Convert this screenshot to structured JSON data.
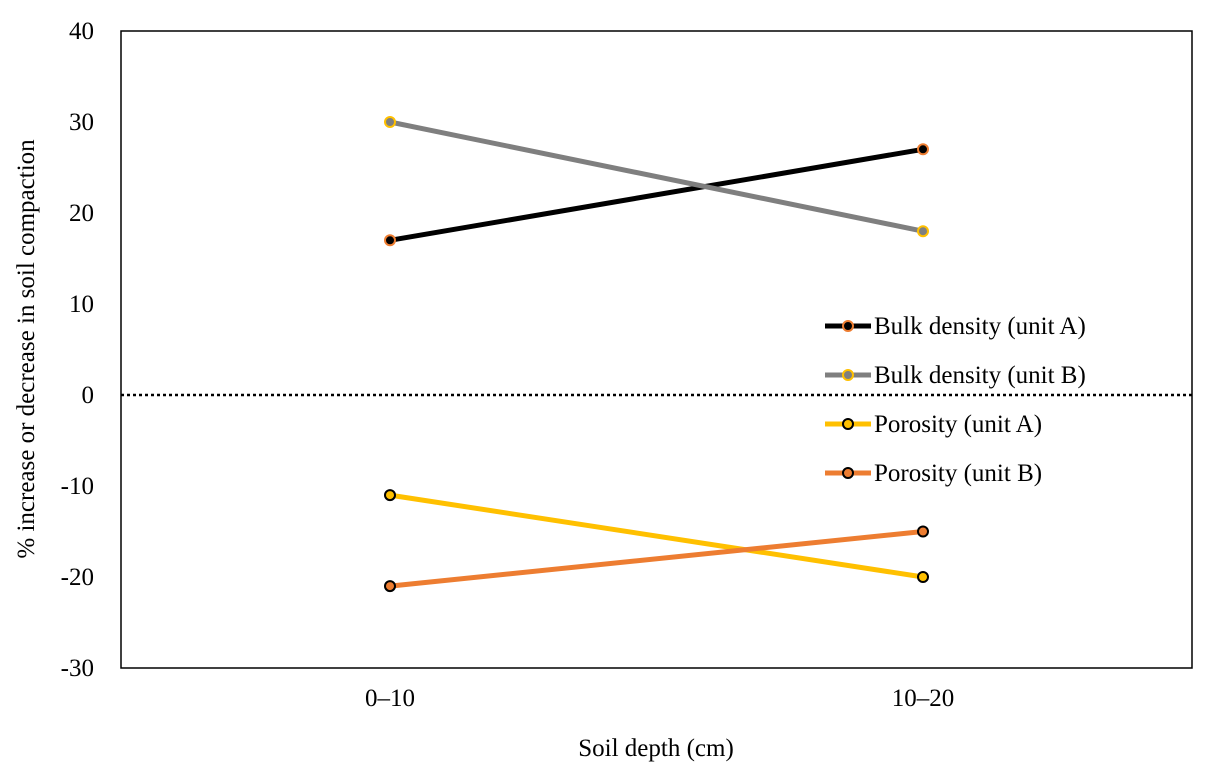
{
  "chart_data": {
    "type": "line",
    "title": "",
    "xlabel": "Soil depth (cm)",
    "ylabel": "% increase or decrease in soil compaction",
    "categories": [
      "0–10",
      "10–20"
    ],
    "ylim": [
      -30,
      40
    ],
    "yticks": [
      -30,
      -20,
      -10,
      0,
      10,
      20,
      30,
      40
    ],
    "ytick_labels": [
      "-30",
      "-20",
      "-10",
      "0",
      "10",
      "20",
      "30",
      "40"
    ],
    "reference_line": {
      "value": 0,
      "style": "dotted"
    },
    "legend_position": "right",
    "series": [
      {
        "name": "Bulk density (unit A)",
        "values": [
          17,
          27
        ],
        "line_color": "#000000",
        "marker_fill": "#000000",
        "marker_edge": "#ed7d31"
      },
      {
        "name": "Bulk density (unit B)",
        "values": [
          30,
          18
        ],
        "line_color": "#7f7f7f",
        "marker_fill": "#7f7f7f",
        "marker_edge": "#ffc000"
      },
      {
        "name": "Porosity (unit A)",
        "values": [
          -11,
          -20
        ],
        "line_color": "#ffc000",
        "marker_fill": "#ffc000",
        "marker_edge": "#000000"
      },
      {
        "name": "Porosity (unit B)",
        "values": [
          -21,
          -15
        ],
        "line_color": "#ed7d31",
        "marker_fill": "#ed7d31",
        "marker_edge": "#000000"
      }
    ]
  }
}
